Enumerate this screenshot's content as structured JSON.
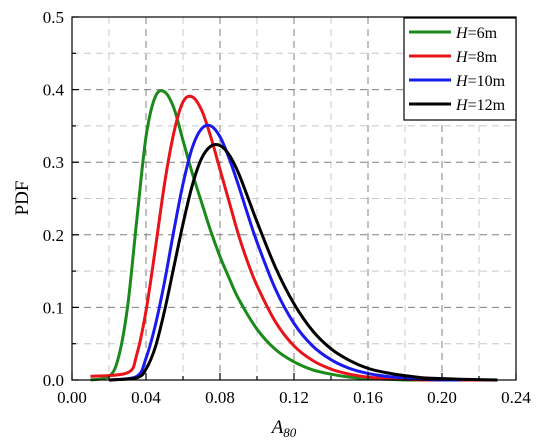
{
  "chart_data": {
    "type": "line",
    "xlabel": "A",
    "xlabel_sub": "80",
    "ylabel": "PDF",
    "xlim": [
      0.0,
      0.24
    ],
    "ylim": [
      0.0,
      0.5
    ],
    "xticks": [
      "0.00",
      "0.04",
      "0.08",
      "0.12",
      "0.16",
      "0.20",
      "0.24"
    ],
    "yticks": [
      "0.0",
      "0.1",
      "0.2",
      "0.3",
      "0.4",
      "0.5"
    ],
    "grid": true,
    "legend_position": "top-right",
    "series": [
      {
        "name": "H=6m",
        "legend_var": "H",
        "legend_rest": "=6m",
        "color": "#1a8a1a",
        "x": [
          0.01,
          0.02,
          0.025,
          0.03,
          0.035,
          0.04,
          0.045,
          0.05,
          0.055,
          0.06,
          0.065,
          0.07,
          0.075,
          0.08,
          0.085,
          0.09,
          0.1,
          0.11,
          0.12,
          0.13,
          0.14,
          0.15,
          0.16,
          0.17,
          0.18,
          0.19,
          0.2
        ],
        "y": [
          0.0,
          0.005,
          0.03,
          0.1,
          0.22,
          0.335,
          0.39,
          0.397,
          0.375,
          0.33,
          0.285,
          0.245,
          0.205,
          0.17,
          0.14,
          0.112,
          0.07,
          0.042,
          0.025,
          0.014,
          0.008,
          0.004,
          0.002,
          0.001,
          0.0,
          0.0,
          0.0
        ]
      },
      {
        "name": "H=8m",
        "legend_var": "H",
        "legend_rest": "=8m",
        "color": "#e8141a",
        "x": [
          0.01,
          0.03,
          0.035,
          0.04,
          0.045,
          0.05,
          0.055,
          0.06,
          0.065,
          0.07,
          0.075,
          0.08,
          0.085,
          0.09,
          0.095,
          0.1,
          0.11,
          0.12,
          0.13,
          0.14,
          0.15,
          0.16,
          0.17,
          0.18,
          0.19,
          0.2,
          0.23
        ],
        "y": [
          0.005,
          0.01,
          0.035,
          0.095,
          0.18,
          0.27,
          0.34,
          0.383,
          0.39,
          0.372,
          0.335,
          0.29,
          0.245,
          0.2,
          0.162,
          0.13,
          0.08,
          0.047,
          0.027,
          0.015,
          0.008,
          0.004,
          0.002,
          0.001,
          0.0,
          0.0,
          0.0
        ]
      },
      {
        "name": "H=10m",
        "legend_var": "H",
        "legend_rest": "=10m",
        "color": "#1a1aee",
        "x": [
          0.02,
          0.035,
          0.04,
          0.045,
          0.05,
          0.055,
          0.06,
          0.065,
          0.07,
          0.075,
          0.08,
          0.085,
          0.09,
          0.095,
          0.1,
          0.11,
          0.12,
          0.13,
          0.14,
          0.15,
          0.16,
          0.17,
          0.18,
          0.19,
          0.2,
          0.21
        ],
        "y": [
          0.0,
          0.005,
          0.03,
          0.075,
          0.135,
          0.205,
          0.27,
          0.32,
          0.346,
          0.35,
          0.335,
          0.305,
          0.268,
          0.228,
          0.19,
          0.125,
          0.078,
          0.047,
          0.028,
          0.016,
          0.009,
          0.005,
          0.003,
          0.001,
          0.0,
          0.0
        ]
      },
      {
        "name": "H=12m",
        "legend_var": "H",
        "legend_rest": "=12m",
        "color": "#000000",
        "x": [
          0.02,
          0.035,
          0.04,
          0.045,
          0.05,
          0.055,
          0.06,
          0.065,
          0.07,
          0.075,
          0.08,
          0.085,
          0.09,
          0.095,
          0.1,
          0.11,
          0.12,
          0.13,
          0.14,
          0.15,
          0.16,
          0.17,
          0.18,
          0.19,
          0.2,
          0.21,
          0.23
        ],
        "y": [
          0.0,
          0.003,
          0.015,
          0.045,
          0.095,
          0.155,
          0.215,
          0.268,
          0.305,
          0.322,
          0.323,
          0.31,
          0.285,
          0.252,
          0.218,
          0.155,
          0.105,
          0.068,
          0.043,
          0.027,
          0.016,
          0.01,
          0.006,
          0.003,
          0.002,
          0.001,
          0.0
        ]
      }
    ]
  }
}
